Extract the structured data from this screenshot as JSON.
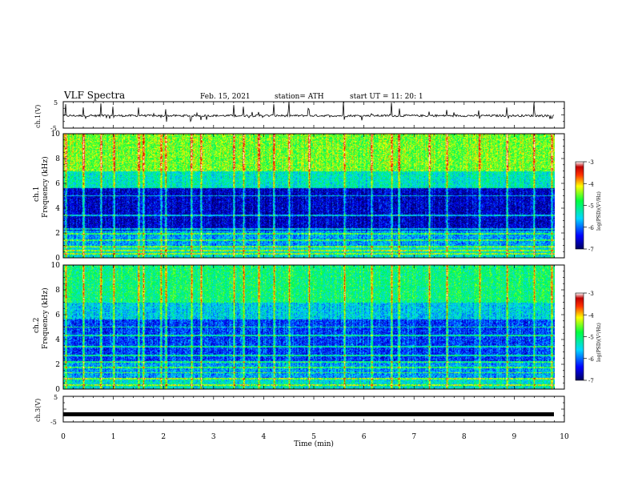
{
  "header": {
    "title": "VLF Spectra",
    "date": "Feb. 15, 2021",
    "station": "station= ATH",
    "start": "start  UT  =   11: 20: 1"
  },
  "panels": {
    "ch1_wave_label": "ch.1(V)",
    "ch1_spec_label_a": "ch.1",
    "ch1_spec_label_b": "Frequency (kHz)",
    "ch2_spec_label_a": "ch.2",
    "ch2_spec_label_b": "Frequency (kHz)",
    "ch3_wave_label": "ch.3(V)",
    "colorbar_label": "log(PSD)(V²/Hz)"
  },
  "chart_data": {
    "type": "heatmap",
    "xlabel": "Time (min)",
    "x_ticks": [
      "0",
      "1",
      "2",
      "3",
      "4",
      "5",
      "6",
      "7",
      "8",
      "9",
      "10"
    ],
    "xlim": [
      0,
      10
    ],
    "data_end_min": 9.8,
    "wave_ylim": [
      -5,
      5
    ],
    "wave_ticks": [
      "5",
      "-5"
    ],
    "freq_ylim": [
      0,
      10
    ],
    "freq_ticks": [
      "0",
      "2",
      "4",
      "6",
      "8",
      "10"
    ],
    "colorbar": {
      "range": [
        -7,
        -3
      ],
      "ticks": [
        "-3",
        "-4",
        "-5",
        "-6",
        "-7"
      ]
    },
    "ch1_wave_level": -0.3,
    "ch3_wave_level": -2.0,
    "ch1_bands_khz": [
      0.3,
      0.55,
      0.9,
      1.4,
      1.9,
      2.3,
      3.4,
      5.0
    ],
    "ch2_bands_khz": [
      0.3,
      0.8,
      1.3,
      1.7,
      2.2,
      2.7,
      3.4,
      4.3,
      5.0
    ],
    "sferic_times_min": [
      0.05,
      0.4,
      0.75,
      1.0,
      1.5,
      1.6,
      1.95,
      2.05,
      2.55,
      2.75,
      3.4,
      3.6,
      3.9,
      4.2,
      4.5,
      4.9,
      5.6,
      6.15,
      6.55,
      6.7,
      7.3,
      7.65,
      8.3,
      8.85,
      9.4,
      9.75
    ]
  }
}
